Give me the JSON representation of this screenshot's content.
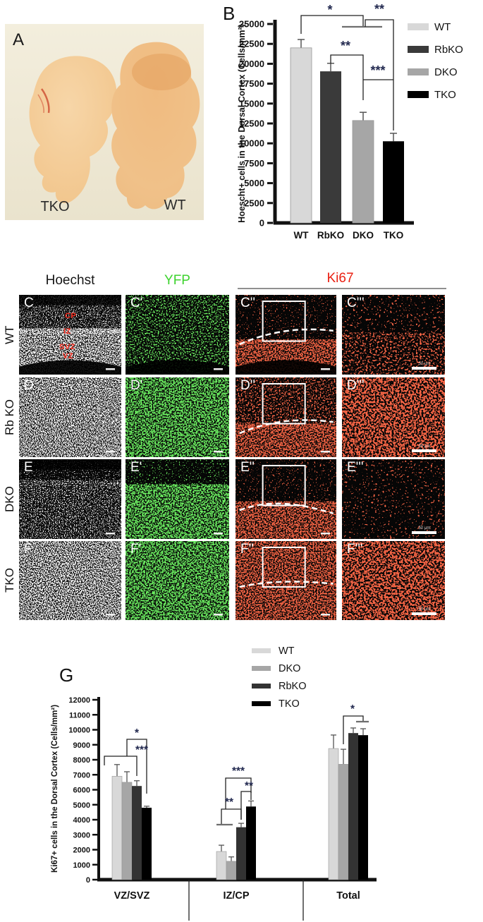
{
  "panel_a": {
    "label": "A",
    "left_label": "TKO",
    "right_label": "WT"
  },
  "panel_b": {
    "label": "B"
  },
  "panel_g": {
    "label": "G"
  },
  "chart_data": [
    {
      "id": "B",
      "type": "bar",
      "title": "",
      "xlabel": "",
      "ylabel": "Hoescht+ cells in the Dorsal Cortex (Cells/mm²)",
      "categories": [
        "WT",
        "RbKO",
        "DKO",
        "TKO"
      ],
      "values": [
        22000,
        19050,
        12870,
        10260
      ],
      "errors_plus": [
        1050,
        1010,
        1030,
        1000
      ],
      "colors": [
        "#d8d8d8",
        "#3a3a3a",
        "#a6a6a6",
        "#000000"
      ],
      "ylim": [
        0,
        25000
      ],
      "ytick_step": 2500,
      "grid": false,
      "legend_position": "right",
      "legend": [
        {
          "label": "WT",
          "color": "#d8d8d8"
        },
        {
          "label": "RbKO",
          "color": "#3a3a3a"
        },
        {
          "label": "DKO",
          "color": "#a6a6a6"
        },
        {
          "label": "TKO",
          "color": "#000000"
        }
      ],
      "significance": [
        {
          "compare": [
            "WT",
            "DKO"
          ],
          "label": "*"
        },
        {
          "compare": [
            "DKO",
            "TKO"
          ],
          "label": "**"
        },
        {
          "compare": [
            "RbKO",
            "DKO"
          ],
          "label": "**"
        },
        {
          "compare": [
            "DKO",
            "TKO"
          ],
          "label": "***"
        }
      ],
      "annotations": {
        "lines": [
          {
            "pts": [
              [
                127,
                48
              ],
              [
                127,
                22
              ],
              [
                215,
                22
              ],
              [
                215,
                38
              ]
            ]
          },
          {
            "pts": [
              [
                185,
                38
              ],
              [
                242,
                38
              ]
            ],
            "gray": true
          },
          {
            "pts": [
              [
                218,
                38
              ],
              [
                218,
                28
              ],
              [
                258,
                28
              ],
              [
                258,
                185
              ]
            ]
          },
          {
            "pts": [
              [
                169,
                90
              ],
              [
                169,
                78
              ],
              [
                215,
                78
              ],
              [
                215,
                142
              ]
            ]
          },
          {
            "pts": [
              [
                215,
                113
              ],
              [
                258,
                113
              ]
            ]
          }
        ],
        "stars": [
          {
            "t": "*",
            "x": 168,
            "y": 20
          },
          {
            "t": "**",
            "x": 238,
            "y": 19
          },
          {
            "t": "**",
            "x": 190,
            "y": 71
          },
          {
            "t": "***",
            "x": 236,
            "y": 106
          }
        ]
      }
    },
    {
      "id": "G",
      "type": "grouped-bar",
      "title": "",
      "xlabel": "",
      "ylabel": "Ki67+ cells in the Dorsal Cortex (Cells/mm²)",
      "categories": [
        "VZ/SVZ",
        "IZ/CP",
        "Total"
      ],
      "series": [
        {
          "name": "WT",
          "color": "#d8d8d8",
          "values": [
            6900,
            1880,
            8750
          ],
          "errors_plus": [
            780,
            420,
            900
          ]
        },
        {
          "name": "DKO",
          "color": "#a6a6a6",
          "values": [
            6500,
            1230,
            7700
          ],
          "errors_plus": [
            700,
            290,
            1000
          ]
        },
        {
          "name": "RbKO",
          "color": "#333333",
          "values": [
            6250,
            3500,
            9780
          ],
          "errors_plus": [
            350,
            260,
            340
          ]
        },
        {
          "name": "TKO",
          "color": "#000000",
          "values": [
            4800,
            4880,
            9640
          ],
          "errors_plus": [
            100,
            370,
            430
          ]
        }
      ],
      "ylim": [
        0,
        12000
      ],
      "ytick_step": 1000,
      "grid": false,
      "legend_position": "top",
      "legend": [
        {
          "label": "WT",
          "color": "#d8d8d8"
        },
        {
          "label": "DKO",
          "color": "#a6a6a6"
        },
        {
          "label": "RbKO",
          "color": "#333333"
        },
        {
          "label": "TKO",
          "color": "#000000"
        }
      ],
      "significance": [
        {
          "group": "VZ/SVZ",
          "compare": [
            "DKO",
            "TKO"
          ],
          "label": "*"
        },
        {
          "group": "VZ/SVZ",
          "compare": [
            "WT",
            "TKO"
          ],
          "label": "***"
        },
        {
          "group": "IZ/CP",
          "compare": [
            "WT",
            "RbKO"
          ],
          "label": "**"
        },
        {
          "group": "IZ/CP",
          "compare": [
            "WT",
            "TKO"
          ],
          "label": "***"
        },
        {
          "group": "IZ/CP",
          "compare": [
            "RbKO",
            "TKO"
          ],
          "label": "**"
        },
        {
          "group": "Total",
          "compare": [
            "DKO",
            "TKO"
          ],
          "label": "*"
        }
      ],
      "annotations": {
        "lines": [
          {
            "pts": [
              [
                148,
                180
              ],
              [
                148,
                167
              ],
              [
                194,
                167
              ],
              [
                194,
                195
              ]
            ]
          },
          {
            "pts": [
              [
                180,
                167
              ],
              [
                180,
                143
              ],
              [
                208,
                143
              ],
              [
                208,
                220
              ]
            ]
          },
          {
            "pts": [
              [
                314,
                265
              ],
              [
                314,
                242
              ],
              [
                342,
                242
              ],
              [
                342,
                257
              ]
            ]
          },
          {
            "pts": [
              [
                307,
                264
              ],
              [
                330,
                264
              ]
            ],
            "gray": true
          },
          {
            "pts": [
              [
                320,
                242
              ],
              [
                320,
                198
              ],
              [
                356,
                198
              ],
              [
                356,
                219
              ]
            ]
          },
          {
            "pts": [
              [
                342,
                257
              ],
              [
                342,
                217
              ],
              [
                356,
                217
              ],
              [
                356,
                229
              ]
            ]
          },
          {
            "pts": [
              [
                487,
                150
              ],
              [
                487,
                110
              ],
              [
                515,
                110
              ],
              [
                515,
                118
              ]
            ]
          },
          {
            "pts": [
              [
                505,
                118
              ],
              [
                523,
                118
              ]
            ],
            "gray": true
          }
        ],
        "stars": [
          {
            "t": "*",
            "x": 194,
            "y": 139
          },
          {
            "t": "***",
            "x": 201,
            "y": 163
          },
          {
            "t": "**",
            "x": 325,
            "y": 237
          },
          {
            "t": "***",
            "x": 338,
            "y": 193
          },
          {
            "t": "**",
            "x": 353,
            "y": 214
          },
          {
            "t": "*",
            "x": 500,
            "y": 105
          }
        ]
      }
    }
  ],
  "micro": {
    "col_headers": [
      {
        "label": "Hoechst",
        "color": "#161616"
      },
      {
        "label": "YFP",
        "color": "#3ed32f"
      },
      {
        "label": "Ki67",
        "color": "#ea2012"
      }
    ],
    "zone_labels": [
      "CP",
      "IZ",
      "SVZ",
      "VZ"
    ],
    "scale_text": "50 µm",
    "rows": [
      {
        "row_label": "WT",
        "dash_curve": [
          0.62,
          0.46,
          0.4,
          0.45
        ],
        "panels": [
          {
            "label": "C",
            "tone": "white",
            "top": "medium",
            "bottom": "dense",
            "split": 0.45,
            "dark_bottom": true,
            "dark_top": true
          },
          {
            "label": "C'",
            "tone": "green",
            "top": "medium",
            "bottom": "medium",
            "split": 0,
            "dark_bottom": true
          },
          {
            "label": "C''",
            "tone": "red",
            "top": "sparse",
            "bottom": "dense",
            "split": 0.58,
            "dark_bottom": true,
            "box": true,
            "dash": true
          },
          {
            "label": "C'''",
            "tone": "red",
            "top": "sparse",
            "bottom": "medium",
            "split": 0.5,
            "scale_text": true
          }
        ]
      },
      {
        "row_label": "Rb KO",
        "dash_curve": [
          0.7,
          0.55,
          0.5,
          0.56
        ],
        "panels": [
          {
            "label": "D",
            "tone": "white",
            "top": "dense",
            "bottom": "dense",
            "split": 0
          },
          {
            "label": "D'",
            "tone": "green",
            "top": "dense",
            "bottom": "dense",
            "split": 0
          },
          {
            "label": "D''",
            "tone": "red",
            "top": "medium",
            "bottom": "dense",
            "split": 0.6,
            "box": true,
            "dash": true
          },
          {
            "label": "D'''",
            "tone": "red",
            "top": "dense",
            "bottom": "dense",
            "split": 0,
            "scale_text": true
          }
        ]
      },
      {
        "row_label": "DKO",
        "dash_curve": [
          0.64,
          0.5,
          0.55,
          0.68
        ],
        "panels": [
          {
            "label": "E",
            "tone": "white",
            "top": "sparse",
            "bottom": "medium",
            "split": 0.3,
            "dark_top": true
          },
          {
            "label": "E'",
            "tone": "green",
            "top": "sparse",
            "bottom": "dense",
            "split": 0.35
          },
          {
            "label": "E''",
            "tone": "red",
            "top": "sparse",
            "bottom": "dense",
            "split": 0.55,
            "box": true,
            "dash": true
          },
          {
            "label": "E'''",
            "tone": "red",
            "top": "sparse",
            "bottom": "sparse",
            "split": 0,
            "scale_text": true
          }
        ]
      },
      {
        "row_label": "TKO",
        "dash_curve": [
          0.58,
          0.5,
          0.5,
          0.54
        ],
        "panels": [
          {
            "label": "F",
            "tone": "white",
            "top": "dense",
            "bottom": "dense",
            "split": 0
          },
          {
            "label": "F'",
            "tone": "green",
            "top": "dense",
            "bottom": "dense",
            "split": 0
          },
          {
            "label": "F''",
            "tone": "red",
            "top": "dense",
            "bottom": "dense",
            "split": 0,
            "box": true,
            "dash": true
          },
          {
            "label": "F'''",
            "tone": "red",
            "top": "dense",
            "bottom": "dense",
            "split": 0,
            "scale_text": true
          }
        ]
      }
    ]
  }
}
